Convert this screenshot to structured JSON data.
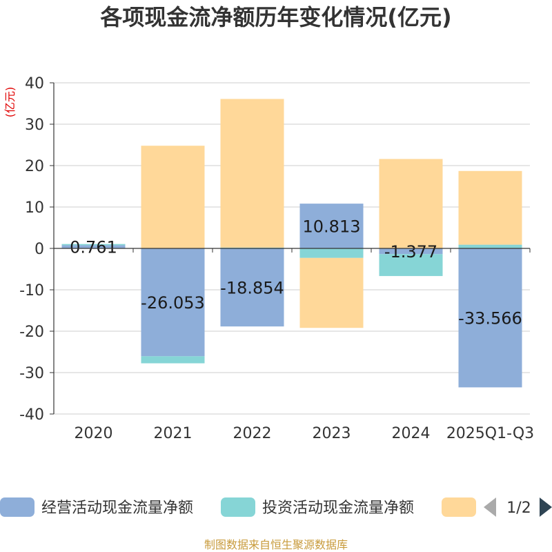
{
  "chart_data": {
    "type": "bar",
    "stacked": true,
    "title": "各项现金流净额历年变化情况(亿元)",
    "ylabel": "(亿元)",
    "ylim": [
      -40,
      40
    ],
    "yticks": [
      40,
      30,
      20,
      10,
      0,
      -10,
      -20,
      -30,
      -40
    ],
    "categories": [
      "2020",
      "2021",
      "2022",
      "2023",
      "2024",
      "2025Q1-Q3"
    ],
    "series": [
      {
        "name": "经营活动现金流量净额",
        "color": "#8eaed9",
        "values": [
          0.761,
          -26.053,
          -18.854,
          10.813,
          -1.377,
          -33.566
        ]
      },
      {
        "name": "投资活动现金流量净额",
        "color": "#86d5d6",
        "values": [
          0.3,
          -1.7,
          0.2,
          -2.3,
          -5.3,
          0.9
        ]
      },
      {
        "name": "",
        "color": "#ffd899",
        "values": [
          0.0,
          24.8,
          35.9,
          -16.9,
          21.6,
          17.8
        ]
      }
    ],
    "data_labels": [
      "0.761",
      "-26.053",
      "-18.854",
      "10.813",
      "-1.377",
      "-33.566"
    ],
    "legend": {
      "items": [
        "经营活动现金流量净额",
        "投资活动现金流量净额",
        ""
      ],
      "page": "1/2",
      "position": "bottom"
    },
    "footer": "制图数据来自恒生聚源数据库"
  }
}
